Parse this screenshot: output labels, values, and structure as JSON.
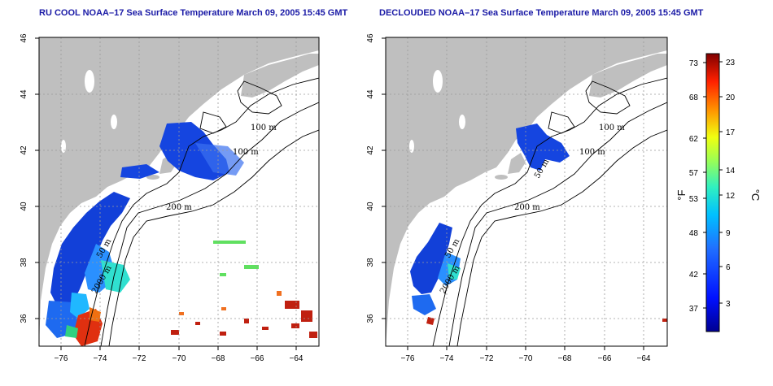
{
  "titles": {
    "left": "RU COOL NOAA–17 Sea Surface Temperature March 09, 2005 15:45 GMT",
    "right": "DECLOUDED NOAA–17 Sea Surface Temperature March 09, 2005 15:45 GMT"
  },
  "axes": {
    "x_ticks": [
      "−76",
      "−74",
      "−72",
      "−70",
      "−68",
      "−66",
      "−64"
    ],
    "y_ticks": [
      "46",
      "44",
      "42",
      "40",
      "38",
      "36"
    ]
  },
  "isobath_labels": {
    "left": [
      "100 m",
      "100 m",
      "200 m",
      "50 m",
      "2000 m"
    ],
    "right": [
      "100 m",
      "100 m",
      "50 m",
      "200 m",
      "50 m",
      "2000 m"
    ]
  },
  "colorbar": {
    "fahrenheit_unit": "°F",
    "celsius_unit": "°C",
    "fahrenheit_ticks": [
      "73",
      "68",
      "62",
      "57",
      "53",
      "48",
      "42",
      "37"
    ],
    "celsius_ticks": [
      "23",
      "20",
      "17",
      "14",
      "12",
      "9",
      "6",
      "3"
    ],
    "range_c": [
      0,
      24
    ]
  },
  "colors": {
    "land": "#bfbfbf",
    "grid": "#9a9a9a",
    "title": "#1a1aa6",
    "cold": "#1040e0",
    "warm": "#c01010"
  }
}
